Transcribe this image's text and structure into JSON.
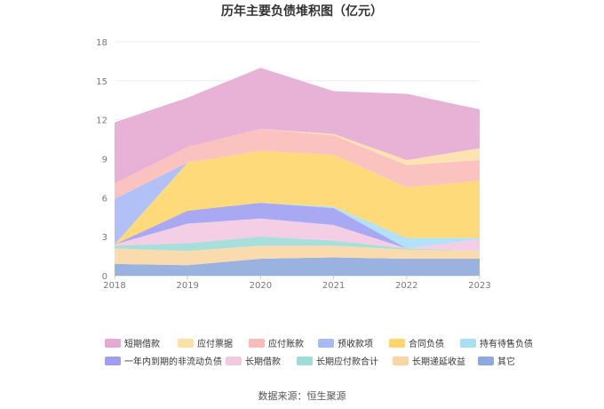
{
  "chart_data": {
    "type": "area",
    "title": "历年主要负债堆积图（亿元）",
    "source": "数据来源：恒生聚源",
    "x": [
      "2018",
      "2019",
      "2020",
      "2021",
      "2022",
      "2023"
    ],
    "ylim": [
      0,
      18
    ],
    "yticks": [
      "0",
      "3",
      "6",
      "9",
      "12",
      "15",
      "18"
    ],
    "stacked": true,
    "grid": true,
    "legend_position": "bottom",
    "series": [
      {
        "name": "其它",
        "color": "#8eaadc",
        "values": [
          0.9,
          0.8,
          1.3,
          1.4,
          1.3,
          1.3
        ]
      },
      {
        "name": "长期递延收益",
        "color": "#f9d7a4",
        "values": [
          1.2,
          1.1,
          1.0,
          0.9,
          0.7,
          0.6
        ]
      },
      {
        "name": "长期应付款合计",
        "color": "#9fdcd8",
        "values": [
          0.2,
          0.6,
          0.7,
          0.4,
          0.1,
          0.0
        ]
      },
      {
        "name": "长期借款",
        "color": "#f2c9e1",
        "values": [
          0.1,
          1.5,
          1.4,
          1.2,
          0.0,
          0.9
        ]
      },
      {
        "name": "一年内到期的非流动负债",
        "color": "#9f9ff2",
        "values": [
          0.0,
          1.0,
          1.2,
          1.3,
          0.0,
          0.0
        ]
      },
      {
        "name": "持有待售负债",
        "color": "#a8dff7",
        "values": [
          0.0,
          0.0,
          0.0,
          0.1,
          0.8,
          0.1
        ]
      },
      {
        "name": "合同负债",
        "color": "#ffd66b",
        "values": [
          0.0,
          3.7,
          4.0,
          4.0,
          3.9,
          4.4
        ]
      },
      {
        "name": "预收款项",
        "color": "#a8baf6",
        "values": [
          3.5,
          0.0,
          0.0,
          0.0,
          0.0,
          0.0
        ]
      },
      {
        "name": "应付账款",
        "color": "#fbbcb8",
        "values": [
          1.2,
          1.2,
          1.7,
          1.5,
          1.7,
          1.6
        ]
      },
      {
        "name": "应付票据",
        "color": "#fde0a8",
        "values": [
          0.0,
          0.0,
          0.0,
          0.1,
          0.4,
          0.9
        ]
      },
      {
        "name": "短期借款",
        "color": "#e5aad2",
        "values": [
          4.7,
          3.8,
          4.7,
          3.3,
          5.1,
          3.0
        ]
      }
    ],
    "legend_order": [
      "短期借款",
      "应付票据",
      "应付账款",
      "预收款项",
      "合同负债",
      "持有待售负债",
      "一年内到期的非流动负债",
      "长期借款",
      "长期应付款合计",
      "长期递延收益",
      "其它"
    ]
  }
}
